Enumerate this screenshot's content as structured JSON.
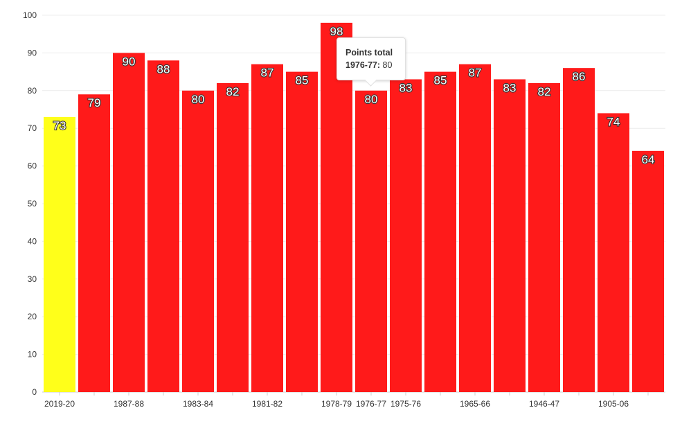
{
  "chart_data": {
    "type": "bar",
    "title": "",
    "xlabel": "",
    "ylabel": "",
    "ylim": [
      0,
      100
    ],
    "yticks": [
      0,
      10,
      20,
      30,
      40,
      50,
      60,
      70,
      80,
      90,
      100
    ],
    "grid": true,
    "categories": [
      "2019-20",
      "",
      "1987-88",
      "",
      "1983-84",
      "",
      "1981-82",
      "",
      "1978-79",
      "1976-77",
      "1975-76",
      "",
      "1965-66",
      "",
      "1946-47",
      "",
      "1905-06",
      ""
    ],
    "values": [
      73,
      79,
      90,
      88,
      80,
      82,
      87,
      85,
      98,
      80,
      83,
      85,
      87,
      83,
      82,
      86,
      74,
      64
    ],
    "bar_colors": [
      "#ffff1a",
      "#ff1a1a",
      "#ff1a1a",
      "#ff1a1a",
      "#ff1a1a",
      "#ff1a1a",
      "#ff1a1a",
      "#ff1a1a",
      "#ff1a1a",
      "#ff1a1a",
      "#ff1a1a",
      "#ff1a1a",
      "#ff1a1a",
      "#ff1a1a",
      "#ff1a1a",
      "#ff1a1a",
      "#ff1a1a",
      "#ff1a1a"
    ]
  },
  "tooltip": {
    "title": "Points total",
    "key": "1976-77:",
    "value": "80"
  }
}
